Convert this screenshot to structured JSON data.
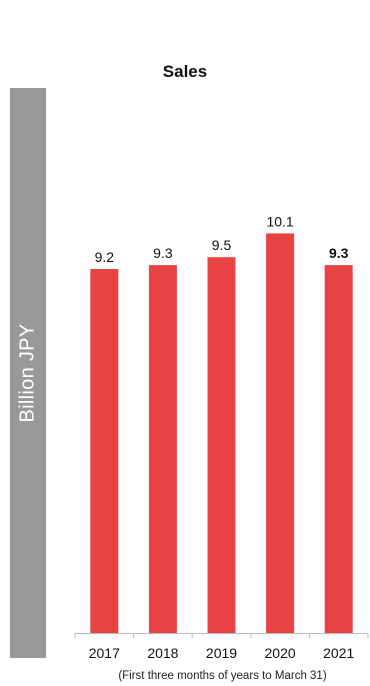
{
  "chart_data": {
    "type": "bar",
    "title": "Sales",
    "ylabel": "Billion JPY",
    "xlabel": "",
    "categories": [
      "2017",
      "2018",
      "2019",
      "2020",
      "2021"
    ],
    "values": [
      9.2,
      9.3,
      9.5,
      10.1,
      9.3
    ],
    "value_labels": [
      "9.2",
      "9.3",
      "9.5",
      "10.1",
      "9.3"
    ],
    "ylim": [
      0,
      11.4
    ],
    "grid": false,
    "bar_color": "#e84343",
    "highlight_last_label_bold": true,
    "footnote": "(First three months of years to March 31)"
  }
}
